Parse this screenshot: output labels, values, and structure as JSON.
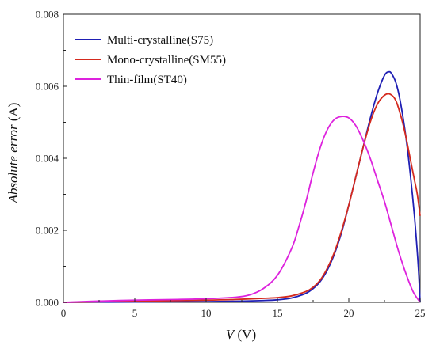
{
  "chart_data": {
    "type": "line",
    "title": "",
    "xlabel_var": "V",
    "xlabel_unit": " (V)",
    "ylabel_var": "Absolute error",
    "ylabel_unit": " (A)",
    "xlim": [
      0,
      25
    ],
    "ylim": [
      0,
      0.008
    ],
    "x_ticks": [
      "0",
      "5",
      "10",
      "15",
      "20",
      "25"
    ],
    "y_ticks": [
      "0.000",
      "0.002",
      "0.004",
      "0.006",
      "0.008"
    ],
    "grid": false,
    "legend_position": "top-left",
    "series": [
      {
        "name": "Multi-crystalline(S75)",
        "color": "#1f1fb4",
        "x": [
          0,
          5,
          10,
          12,
          14,
          15,
          16,
          17,
          17.5,
          18,
          18.5,
          19,
          19.5,
          20,
          20.5,
          21,
          21.5,
          22,
          22.5,
          22.8,
          23,
          23.3,
          23.6,
          24,
          24.3,
          24.6,
          24.8,
          24.9,
          25
        ],
        "y": [
          0,
          1e-05,
          2e-05,
          3e-05,
          5e-05,
          7e-05,
          0.00012,
          0.00025,
          0.00038,
          0.00058,
          0.0009,
          0.00135,
          0.00195,
          0.0027,
          0.0035,
          0.0043,
          0.0051,
          0.0058,
          0.0063,
          0.0064,
          0.00635,
          0.0061,
          0.0056,
          0.0046,
          0.0036,
          0.0024,
          0.0014,
          0.0008,
          0
        ]
      },
      {
        "name": "Mono-crystalline(SM55)",
        "color": "#d42a1e",
        "x": [
          0,
          5,
          10,
          12,
          14,
          15,
          16,
          17,
          17.5,
          18,
          18.5,
          19,
          19.5,
          20,
          20.5,
          21,
          21.5,
          22,
          22.5,
          22.9,
          23.3,
          23.7,
          24,
          24.3,
          24.6,
          24.8,
          25
        ],
        "y": [
          0,
          3e-05,
          6e-05,
          8e-05,
          0.00011,
          0.00013,
          0.00018,
          0.0003,
          0.00042,
          0.00062,
          0.00095,
          0.0014,
          0.002,
          0.0027,
          0.0035,
          0.0043,
          0.005,
          0.0055,
          0.00575,
          0.00578,
          0.0056,
          0.0051,
          0.0046,
          0.004,
          0.0034,
          0.003,
          0.0024
        ]
      },
      {
        "name": "Thin-film(ST40)",
        "color": "#dd22dd",
        "x": [
          0,
          2,
          5,
          8,
          10,
          12,
          13,
          14,
          15,
          16,
          16.5,
          17,
          17.5,
          18,
          18.5,
          19,
          19.5,
          20,
          20.5,
          21,
          21.5,
          22,
          22.5,
          23,
          23.5,
          24,
          24.5,
          25
        ],
        "y": [
          0,
          3e-05,
          6e-05,
          8e-05,
          0.0001,
          0.00014,
          0.0002,
          0.00038,
          0.00075,
          0.0015,
          0.0021,
          0.0028,
          0.0036,
          0.0043,
          0.0048,
          0.00508,
          0.00516,
          0.00512,
          0.0049,
          0.0045,
          0.004,
          0.0034,
          0.0028,
          0.0021,
          0.0014,
          0.0008,
          0.0003,
          0
        ]
      }
    ]
  }
}
